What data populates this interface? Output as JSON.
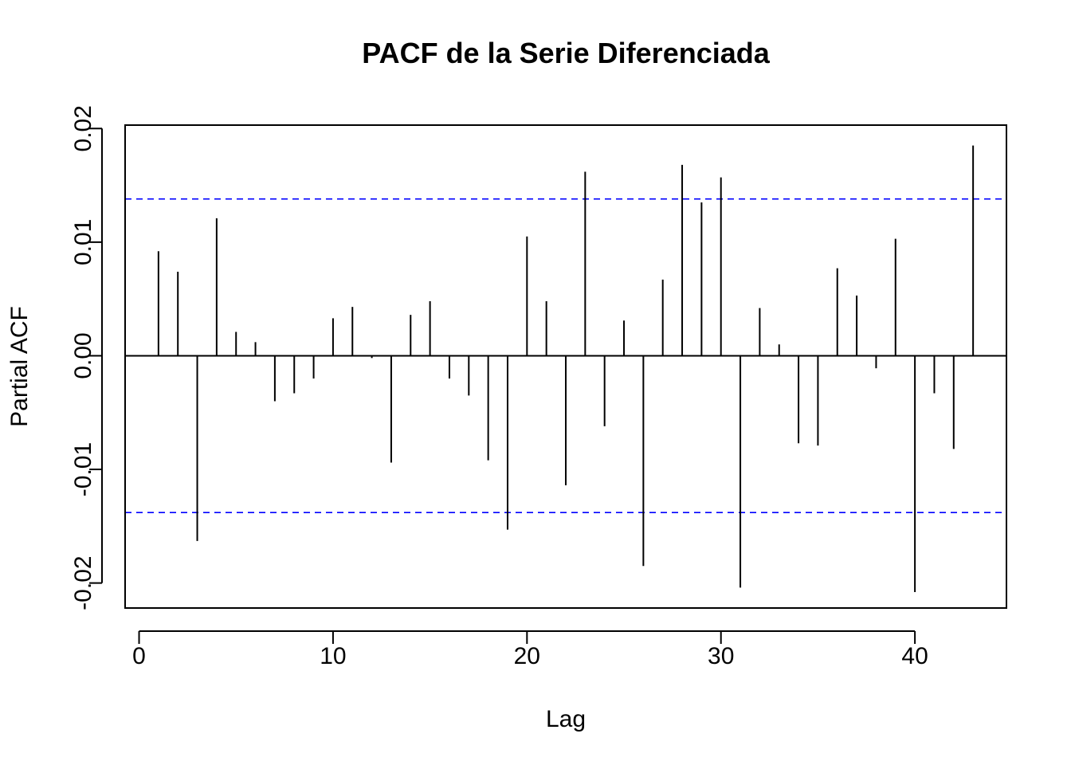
{
  "chart_data": {
    "type": "bar",
    "title": "PACF de la Serie Diferenciada",
    "xlabel": "Lag",
    "ylabel": "Partial ACF",
    "xlim": [
      -0.72,
      44.72
    ],
    "ylim": [
      -0.0222,
      0.0203
    ],
    "x_ticks": [
      0,
      10,
      20,
      30,
      40
    ],
    "x_tick_labels": [
      "0",
      "10",
      "20",
      "30",
      "40"
    ],
    "y_ticks": [
      -0.02,
      -0.01,
      0.0,
      0.01,
      0.02
    ],
    "y_tick_labels": [
      "-0.02",
      "-0.01",
      "0.00",
      "0.01",
      "0.02"
    ],
    "confidence_bounds": [
      0.0138,
      -0.0138
    ],
    "confidence_color": "#0000ff",
    "bar_color": "#000000",
    "lags": [
      1,
      2,
      3,
      4,
      5,
      6,
      7,
      8,
      9,
      10,
      11,
      12,
      13,
      14,
      15,
      16,
      17,
      18,
      19,
      20,
      21,
      22,
      23,
      24,
      25,
      26,
      27,
      28,
      29,
      30,
      31,
      32,
      33,
      34,
      35,
      36,
      37,
      38,
      39,
      40,
      41,
      42,
      43
    ],
    "values": [
      0.0092,
      0.0074,
      -0.0163,
      0.0121,
      0.0021,
      0.0012,
      -0.004,
      -0.0033,
      -0.002,
      0.0033,
      0.0043,
      -0.0002,
      -0.0094,
      0.0036,
      0.0048,
      -0.002,
      -0.0035,
      -0.0092,
      -0.0153,
      0.0105,
      0.0048,
      -0.0114,
      0.0162,
      -0.0062,
      0.0031,
      -0.0185,
      0.0067,
      0.0168,
      0.0135,
      0.0157,
      -0.0204,
      0.0042,
      0.001,
      -0.0077,
      -0.0079,
      0.0077,
      0.0053,
      -0.0011,
      0.0103,
      -0.0208,
      -0.0033,
      -0.0082,
      0.0185
    ]
  }
}
